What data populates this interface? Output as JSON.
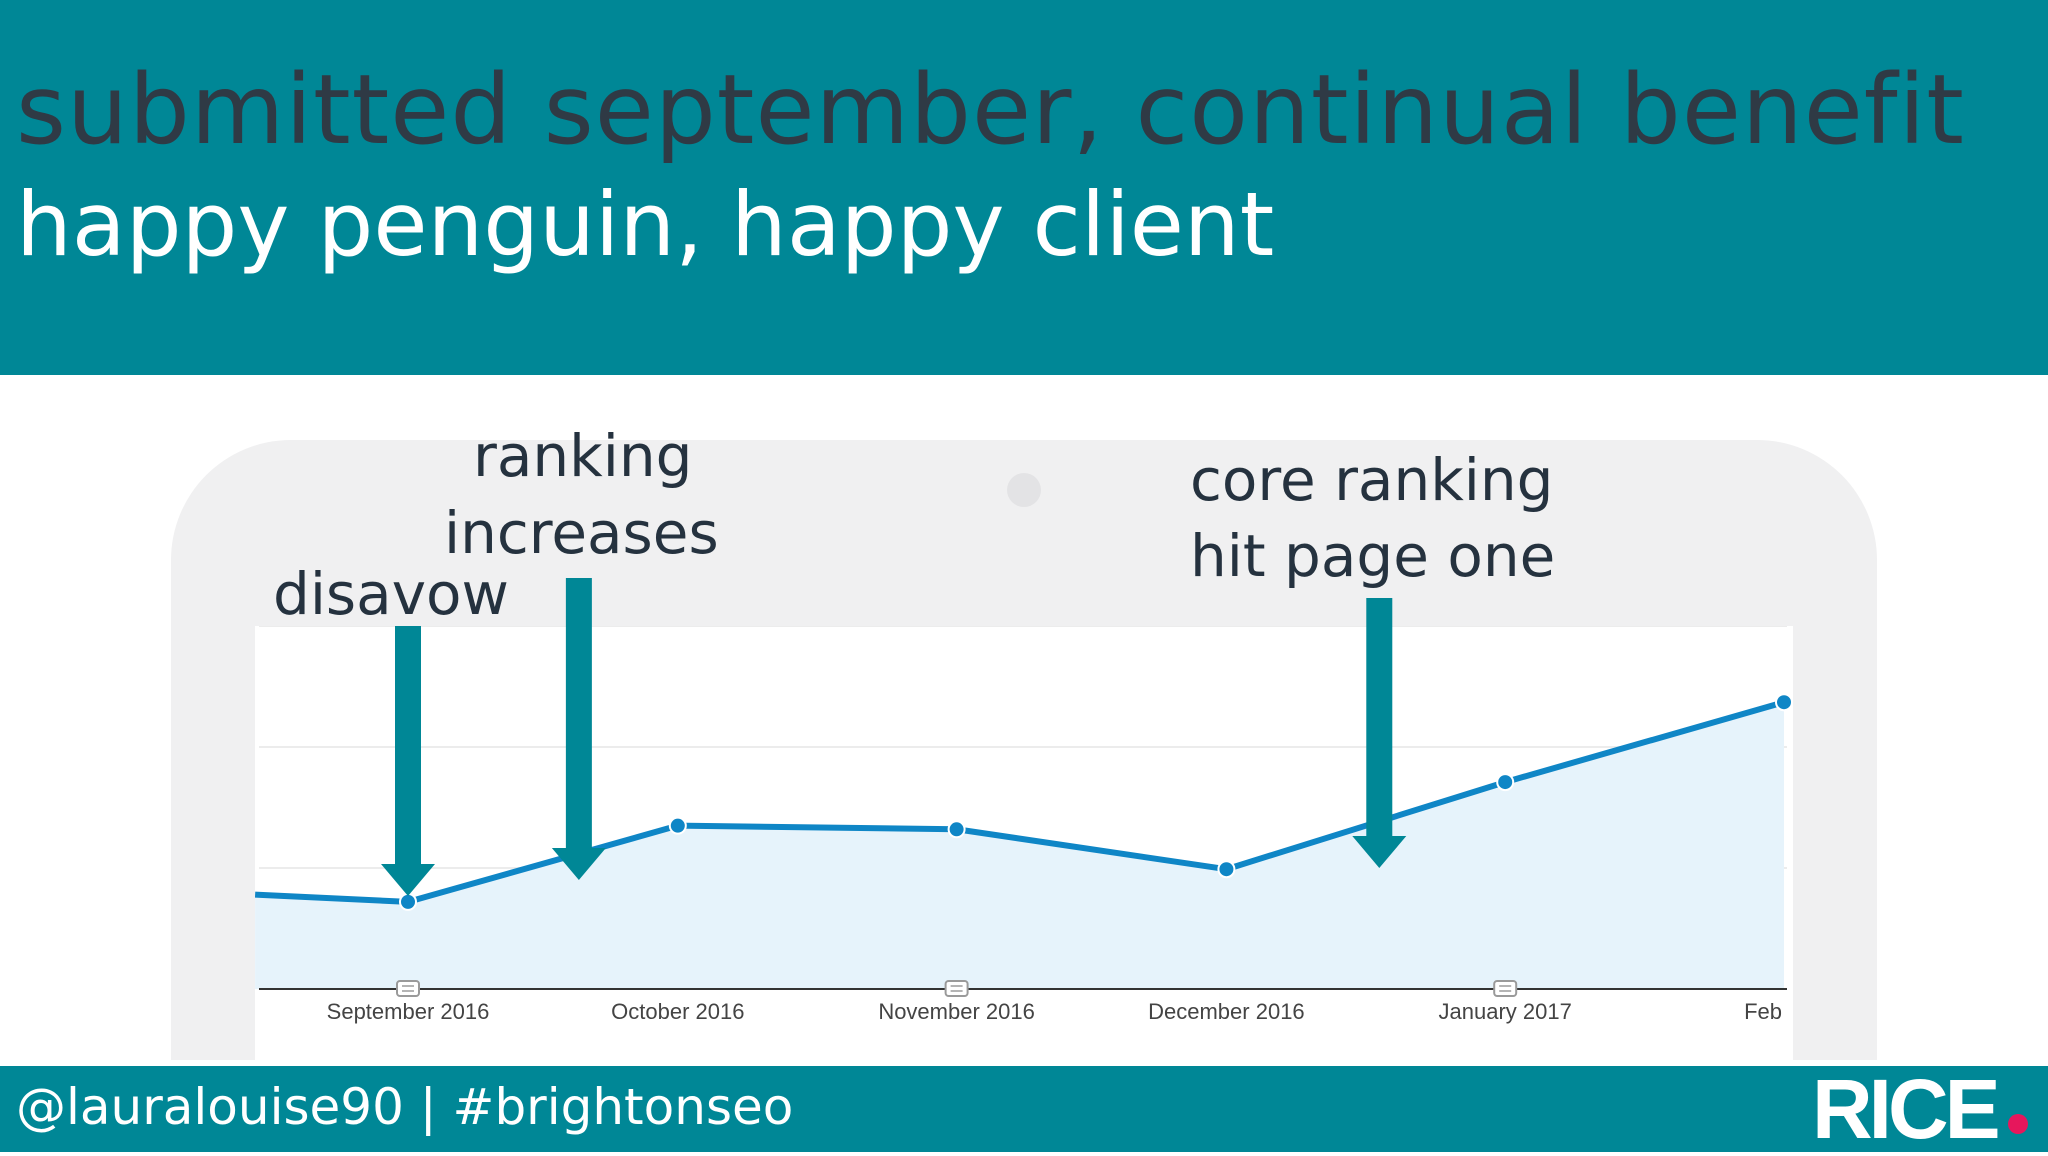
{
  "slide": {
    "title": "submitted september, continual benefit",
    "subtitle": "happy penguin, happy client"
  },
  "footer": {
    "handle": "@lauralouise90 | #brightonseo",
    "logo": "RICE"
  },
  "annotations": {
    "disavow": "disavow",
    "ranking_line1": "ranking",
    "ranking_line2": "increases",
    "core_line1": "core ranking",
    "core_line2": "hit page one"
  },
  "colors": {
    "header_bg": "#008796",
    "line": "#0f86c6",
    "area": "#e6f3fb",
    "arrow": "#008796",
    "logo_dot": "#e6175c"
  },
  "chart_data": {
    "type": "area",
    "x": [
      "2016-08-15",
      "2016-09-01",
      "2016-10-01",
      "2016-11-01",
      "2016-12-01",
      "2017-01-01",
      "2017-02-01"
    ],
    "values": [
      26,
      24,
      45,
      44,
      33,
      57,
      79
    ],
    "ylim": [
      0,
      100
    ],
    "ytick_count": 3,
    "tick_labels": [
      "September 2016",
      "October 2016",
      "November 2016",
      "December 2016",
      "January 2017",
      "Feb"
    ],
    "tick_dates": [
      "2016-09-01",
      "2016-10-01",
      "2016-11-01",
      "2016-12-01",
      "2017-01-01",
      "2017-02-01"
    ],
    "event_markers": [
      "2016-09-01",
      "2016-11-01",
      "2017-01-01"
    ],
    "grid": true,
    "arrows": [
      {
        "date": "2016-09-01",
        "label": "disavow"
      },
      {
        "date": "2016-09-20",
        "label": "ranking increases"
      },
      {
        "date": "2016-12-18",
        "label": "core ranking hit page one"
      }
    ]
  }
}
